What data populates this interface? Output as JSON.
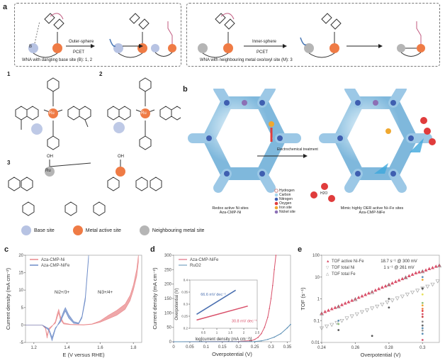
{
  "panel_labels": {
    "a": "a",
    "b": "b",
    "c": "c",
    "d": "d",
    "e": "e"
  },
  "panel_a": {
    "left_box": {
      "arrow_label_top": "Outer-sphere",
      "arrow_label_bottom": "PCET",
      "caption": "WNA with dangling base site (B): 1, 2",
      "base": "B",
      "metal": "M"
    },
    "right_box": {
      "arrow_label_top": "Inner-sphere",
      "arrow_label_bottom": "PCET",
      "caption": "WNA with neighbouring metal oxo/oxyl site (M): 3",
      "metal": "M"
    },
    "complexes": [
      {
        "number": "1",
        "metal": "Ru"
      },
      {
        "number": "2",
        "metal": "Ru"
      },
      {
        "number": "3",
        "metal": "Ru",
        "ligand": "OH"
      }
    ],
    "legend": [
      {
        "label": "Base site",
        "color": "#b7c3e3"
      },
      {
        "label": "Metal active site",
        "color": "#ef7b45"
      },
      {
        "label": "Neighbouring metal site",
        "color": "#b5b5b5"
      }
    ]
  },
  "panel_b": {
    "arrow_label": "Electrochemical treatment",
    "left_caption": [
      "Redox active Ni sites",
      "Aza-CMP-Ni"
    ],
    "right_caption": [
      "Mimic highly OER active Ni–Fe sites",
      "Aza-CMP-NiFe"
    ],
    "water_label": "H2O",
    "atom_legend": [
      {
        "label": "Hydrogen",
        "color": "#ffffff"
      },
      {
        "label": "Carbon",
        "color": "#a9d6ee"
      },
      {
        "label": "Nitrogen",
        "color": "#3f5fb0"
      },
      {
        "label": "Oxygen",
        "color": "#e03c3c"
      },
      {
        "label": "Iron site",
        "color": "#f0a830"
      },
      {
        "label": "Nickel site",
        "color": "#8c6fb5"
      }
    ]
  },
  "chart_data": [
    {
      "id": "c",
      "type": "line",
      "xlabel": "E (V versus RHE)",
      "ylabel": "Current density (mA cm⁻²)",
      "xlim": [
        1.15,
        1.85
      ],
      "ylim": [
        -5,
        20
      ],
      "xticks": [
        1.2,
        1.4,
        1.6,
        1.8
      ],
      "yticks": [
        -5,
        0,
        5,
        10,
        15,
        20
      ],
      "annotations": [
        {
          "text": "Ni2+/3+",
          "x": 1.37,
          "y": 9
        },
        {
          "text": "Ni3+/4+",
          "x": 1.63,
          "y": 9
        }
      ],
      "series": [
        {
          "name": "Aza-CMP-Ni",
          "color": "#e9898c",
          "x": [
            1.15,
            1.25,
            1.27,
            1.28,
            1.29,
            1.31,
            1.33,
            1.34,
            1.35,
            1.36,
            1.38,
            1.42,
            1.5,
            1.55,
            1.6,
            1.65,
            1.7,
            1.75,
            1.78,
            1.8,
            1.82,
            1.83
          ],
          "y": [
            0,
            0,
            -1,
            -3.8,
            -1.5,
            -0.4,
            1,
            3,
            4.5,
            2.5,
            0.6,
            0.2,
            0.1,
            0.3,
            1.2,
            2.8,
            4.2,
            6,
            8.5,
            11.5,
            16,
            20
          ],
          "y_lower": [
            0,
            0,
            -0.5,
            -3,
            -1,
            -0.2,
            0.5,
            2,
            3.5,
            1.5,
            0.3,
            0.1,
            0,
            0.2,
            0.8,
            1.8,
            2.8,
            4.5,
            7,
            10,
            14,
            18
          ]
        },
        {
          "name": "Aza-CMP-NiFe",
          "color": "#6e8cc8",
          "x": [
            1.15,
            1.25,
            1.29,
            1.31,
            1.33,
            1.36,
            1.38,
            1.39,
            1.41,
            1.44,
            1.47,
            1.49,
            1.51,
            1.52,
            1.53
          ],
          "y": [
            0,
            0,
            -1.5,
            -4.5,
            -1.2,
            1.5,
            4,
            5,
            3,
            1,
            0.6,
            2.5,
            8,
            14,
            20
          ],
          "y_lower": [
            0,
            0,
            -1,
            -3.5,
            -0.8,
            0.8,
            3,
            4,
            2,
            0.5,
            0.3,
            2,
            7,
            13,
            19
          ]
        }
      ]
    },
    {
      "id": "d",
      "type": "line",
      "xlabel": "Overpotential (V)",
      "ylabel": "Current density (mA cm⁻²)",
      "xlim": [
        0,
        0.36
      ],
      "ylim": [
        0,
        300
      ],
      "xticks": [
        0,
        0.05,
        0.1,
        0.15,
        0.2,
        0.25,
        0.3,
        0.35
      ],
      "yticks": [
        0,
        50,
        100,
        150,
        200,
        250,
        300
      ],
      "series": [
        {
          "name": "Aza-CMP-NiFe",
          "color": "#d9506a",
          "x": [
            0,
            0.2,
            0.24,
            0.25,
            0.26,
            0.27,
            0.28,
            0.29,
            0.295,
            0.3,
            0.305,
            0.31,
            0.315
          ],
          "y": [
            0,
            1,
            4,
            8,
            15,
            28,
            50,
            85,
            115,
            150,
            195,
            250,
            300
          ]
        },
        {
          "name": "RuO2",
          "color": "#5b8fb5",
          "x": [
            0,
            0.25,
            0.27,
            0.29,
            0.31,
            0.33,
            0.35,
            0.36
          ],
          "y": [
            0,
            0.5,
            3,
            8,
            16,
            28,
            48,
            60
          ]
        }
      ],
      "inset": {
        "xlabel": "log[current density (mA cm⁻²)]",
        "ylabel": "Overpotential (V)",
        "xlim": [
          0,
          2.5
        ],
        "ylim": [
          0.2,
          0.4
        ],
        "xticks": [
          0.5,
          1.0,
          1.5,
          2.0,
          2.5
        ],
        "yticks": [
          0.2,
          0.25,
          0.3,
          0.35,
          0.4
        ],
        "series": [
          {
            "name": "RuO2",
            "color": "#4a6fb0",
            "x": [
              0.25,
              1.7
            ],
            "y": [
              0.258,
              0.358
            ],
            "label": "66.6 mV dec⁻¹"
          },
          {
            "name": "Aza-CMP-NiFe",
            "color": "#d9506a",
            "x": [
              0.25,
              2.15
            ],
            "y": [
              0.234,
              0.292
            ],
            "label": "30.8 mV dec⁻¹"
          }
        ]
      }
    },
    {
      "id": "e",
      "type": "scatter",
      "xlabel": "Overpotential (V)",
      "ylabel": "TOF (s⁻¹)",
      "yscale": "log",
      "xlim": [
        0.24,
        0.31
      ],
      "ylim": [
        0.01,
        100
      ],
      "xticks": [
        0.24,
        0.26,
        0.28,
        0.3
      ],
      "yticks": [
        0.01,
        0.1,
        1,
        10,
        100
      ],
      "annotations": [
        {
          "text": "18.7 s⁻¹ @ 300 mV"
        },
        {
          "text": "1 s⁻¹ @ 261 mV"
        }
      ],
      "series": [
        {
          "name": "TOF active Ni-Fe",
          "marker": "triangle-filled",
          "color": "#d9506a",
          "x": [
            0.24,
            0.242,
            0.244,
            0.246,
            0.248,
            0.25,
            0.252,
            0.254,
            0.256,
            0.258,
            0.26,
            0.262,
            0.264,
            0.266,
            0.268,
            0.27,
            0.272,
            0.274,
            0.276,
            0.278,
            0.28,
            0.282,
            0.284,
            0.286,
            0.288,
            0.29,
            0.292,
            0.294,
            0.296,
            0.298,
            0.3,
            0.302,
            0.304,
            0.306,
            0.308,
            0.31
          ],
          "y": [
            0.22,
            0.26,
            0.3,
            0.35,
            0.4,
            0.46,
            0.54,
            0.63,
            0.73,
            0.85,
            1.0,
            1.16,
            1.35,
            1.57,
            1.83,
            2.13,
            2.5,
            2.9,
            3.4,
            3.9,
            4.6,
            5.3,
            6.2,
            7.2,
            8.4,
            9.8,
            11.4,
            13.3,
            15.5,
            17,
            18.7,
            21,
            24,
            27,
            31,
            35
          ]
        },
        {
          "name": "TOF total Ni",
          "marker": "triangle-down-open",
          "color": "#999999",
          "x": [
            0.24,
            0.243,
            0.246,
            0.249,
            0.252,
            0.255,
            0.258,
            0.261,
            0.264,
            0.267,
            0.27,
            0.273,
            0.276,
            0.279,
            0.282,
            0.285,
            0.288,
            0.291,
            0.294,
            0.297,
            0.3,
            0.303,
            0.306,
            0.309
          ],
          "y": [
            0.045,
            0.055,
            0.065,
            0.08,
            0.1,
            0.13,
            0.16,
            0.2,
            0.25,
            0.3,
            0.37,
            0.45,
            0.56,
            0.7,
            0.85,
            1.05,
            1.3,
            1.6,
            2.0,
            2.4,
            3.0,
            3.7,
            4.6,
            6.5
          ]
        },
        {
          "name": "TOF total Fe",
          "marker": "triangle-open",
          "color": "#888888",
          "x": [
            0.24,
            0.25,
            0.26,
            0.27,
            0.28,
            0.29,
            0.3,
            0.31
          ],
          "y": [
            0.21,
            0.44,
            0.95,
            2.0,
            4.4,
            9.5,
            18,
            33
          ]
        },
        {
          "name": "Literature",
          "marker": "dot",
          "color": "multi",
          "x": [
            0.25,
            0.25,
            0.25,
            0.27,
            0.28,
            0.28,
            0.3,
            0.3,
            0.3,
            0.3,
            0.3,
            0.3,
            0.3,
            0.3,
            0.3,
            0.3,
            0.3,
            0.3,
            0.3,
            0.3,
            0.3,
            0.3
          ],
          "y": [
            0.1,
            0.07,
            0.037,
            0.02,
            1.0,
            0.4,
            10,
            7.5,
            3,
            1.6,
            0.65,
            0.5,
            0.35,
            0.28,
            0.2,
            0.15,
            0.09,
            0.06,
            0.045,
            0.035,
            0.025,
            0.013
          ]
        }
      ]
    }
  ]
}
